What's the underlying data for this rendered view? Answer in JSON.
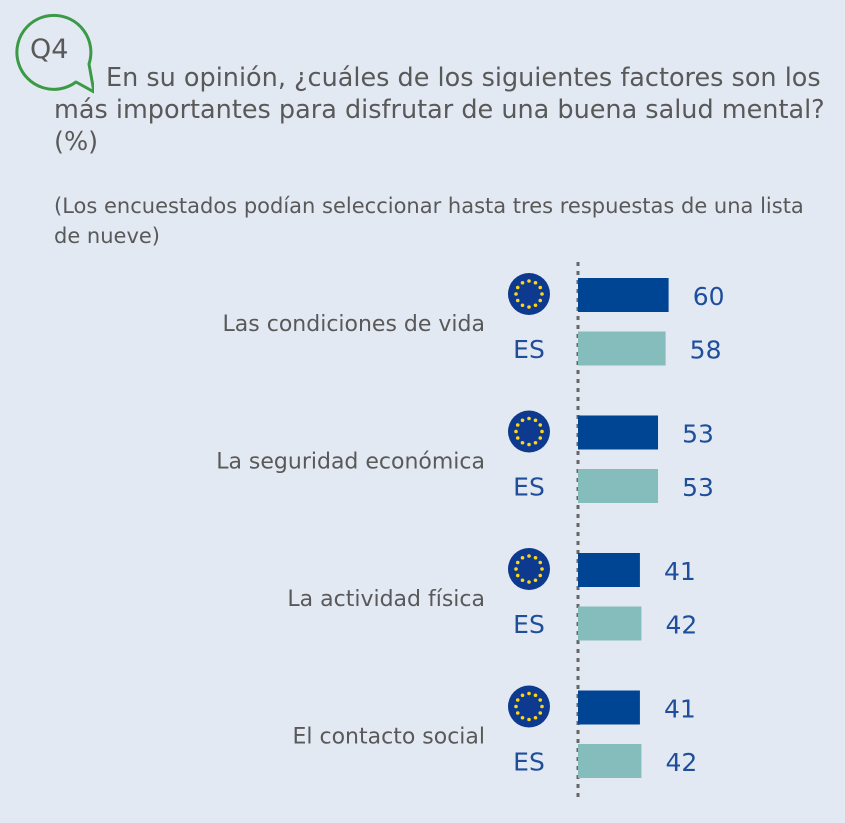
{
  "question_badge": "Q4",
  "title": "En su opinión, ¿cuáles de los siguientes factores son los más importantes para disfrutar de una buena salud mental? (%)",
  "subtitle": "(Los encuestados podían seleccionar hasta tres respuestas de una lista de nueve)",
  "colors": {
    "eu": "#004494",
    "es": "#85bcbc",
    "badge": "#3a9a45"
  },
  "chart_data": {
    "type": "bar",
    "orientation": "horizontal",
    "categories": [
      "Las condiciones de vida",
      "La seguridad económica",
      "La actividad física",
      "El contacto social"
    ],
    "series": [
      {
        "name": "EU",
        "icon": "eu-flag-icon",
        "values": [
          60,
          53,
          41,
          41
        ]
      },
      {
        "name": "ES",
        "values": [
          58,
          53,
          42,
          42
        ]
      }
    ]
  }
}
